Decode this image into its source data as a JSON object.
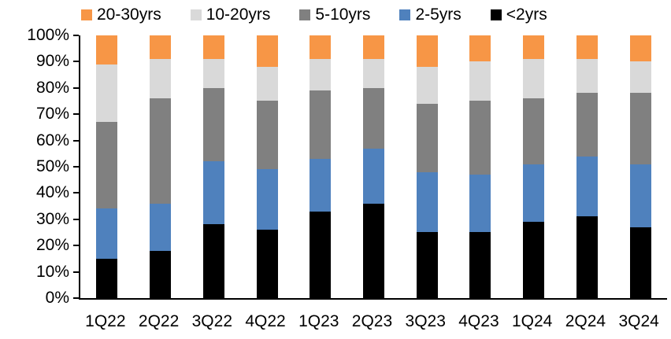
{
  "chart_data": {
    "type": "bar",
    "variant": "stacked-100-percent",
    "title": "",
    "xlabel": "",
    "ylabel": "",
    "ylim": [
      0,
      100
    ],
    "y_tick_step": 10,
    "y_tick_suffix": "%",
    "grid": false,
    "legend_position": "top",
    "legend_order": [
      "20-30yrs",
      "10-20yrs",
      "5-10yrs",
      "2-5yrs",
      "<2yrs"
    ],
    "categories": [
      "1Q22",
      "2Q22",
      "3Q22",
      "4Q22",
      "1Q23",
      "2Q23",
      "3Q23",
      "4Q23",
      "1Q24",
      "2Q24",
      "3Q24"
    ],
    "series": [
      {
        "name": "<2yrs",
        "color": "#000000",
        "values": [
          15,
          18,
          28,
          26,
          33,
          36,
          25,
          25,
          29,
          31,
          27
        ]
      },
      {
        "name": "2-5yrs",
        "color": "#4F81BD",
        "values": [
          19,
          18,
          24,
          23,
          20,
          21,
          23,
          22,
          22,
          23,
          24
        ]
      },
      {
        "name": "5-10yrs",
        "color": "#808080",
        "values": [
          33,
          40,
          28,
          26,
          26,
          23,
          26,
          28,
          25,
          24,
          27
        ]
      },
      {
        "name": "10-20yrs",
        "color": "#D9D9D9",
        "values": [
          22,
          15,
          11,
          13,
          12,
          11,
          14,
          15,
          15,
          13,
          12
        ]
      },
      {
        "name": "20-30yrs",
        "color": "#F79646",
        "values": [
          11,
          9,
          9,
          12,
          9,
          9,
          12,
          10,
          9,
          9,
          10
        ]
      }
    ],
    "colors": {
      "axis": "#000000",
      "text": "#000000",
      "background": "#FFFFFF"
    }
  }
}
